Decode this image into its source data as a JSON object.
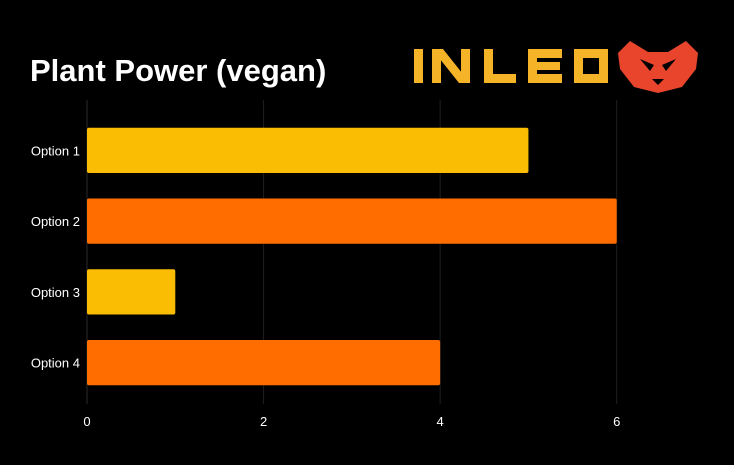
{
  "chart_data": {
    "type": "bar",
    "orientation": "horizontal",
    "title": "Plant Power (vegan)",
    "categories": [
      "Option 1",
      "Option 2",
      "Option 3",
      "Option 4"
    ],
    "values": [
      5,
      6,
      1,
      4
    ],
    "bar_colors": [
      "#FBBC04",
      "#FF6D00",
      "#FBBC04",
      "#FF6D00"
    ],
    "xlim": [
      0,
      7
    ],
    "x_ticks": [
      0,
      2,
      4,
      6
    ],
    "xlabel": "",
    "ylabel": "",
    "grid": true,
    "legend": "none"
  },
  "brand": {
    "wordmark": "INLEO",
    "wordmark_color": "#F5B427",
    "icon": "lion-head-icon",
    "icon_color": "#E8452C"
  },
  "colors": {
    "background": "#000000",
    "gridline": "#1f1f1f",
    "text": "#ffffff"
  }
}
